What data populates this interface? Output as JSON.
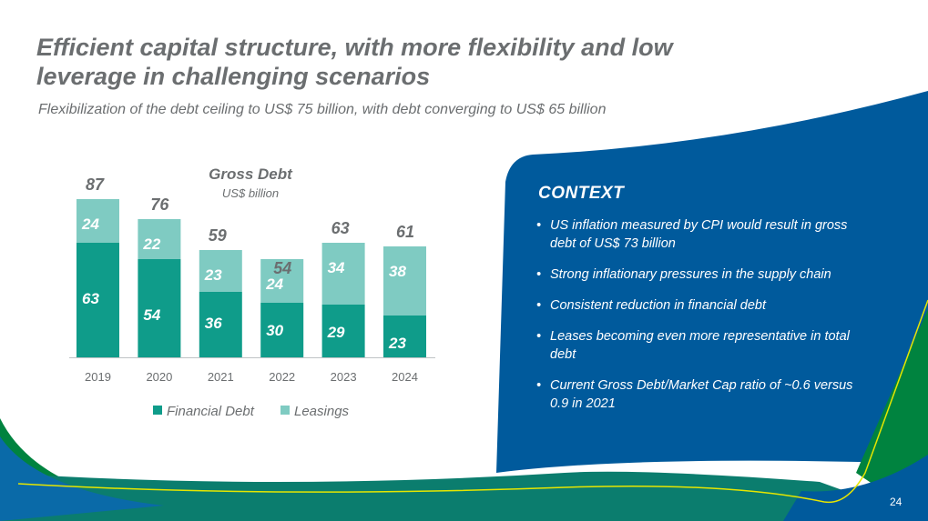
{
  "slide": {
    "title": "Efficient capital structure, with more flexibility and low leverage in challenging scenarios",
    "subtitle": "Flexibilization of the debt ceiling to US$ 75 billion, with debt converging to US$ 65 billion",
    "page_number": "24"
  },
  "context": {
    "heading": "CONTEXT",
    "bullet_glyph": "•",
    "bullets": [
      "US inflation measured by CPI would result in gross debt of US$ 73 billion",
      "Strong inflationary pressures in the supply chain",
      "Consistent reduction in financial debt",
      "Leases becoming even more representative in total debt",
      "Current Gross Debt/Market Cap ratio of ~0.6 versus 0.9 in 2021"
    ]
  },
  "colors": {
    "financial_debt": "#0f9c8a",
    "leasings": "#7fcbc2",
    "panel_blue": "#005a9c",
    "accent_green": "#00833f",
    "accent_yellow": "#e6e600",
    "title_gray": "#6b6e70"
  },
  "chart_data": {
    "type": "bar",
    "stacked": true,
    "title": "Gross Debt",
    "subtitle": "US$ billion",
    "categories": [
      "2019",
      "2020",
      "2021",
      "2022",
      "2023",
      "2024"
    ],
    "series": [
      {
        "name": "Financial Debt",
        "values": [
          63,
          54,
          36,
          30,
          29,
          23
        ]
      },
      {
        "name": "Leasings",
        "values": [
          24,
          22,
          23,
          24,
          34,
          38
        ]
      }
    ],
    "totals": [
      87,
      76,
      59,
      54,
      63,
      61
    ],
    "legend_position": "bottom",
    "grid": false
  }
}
